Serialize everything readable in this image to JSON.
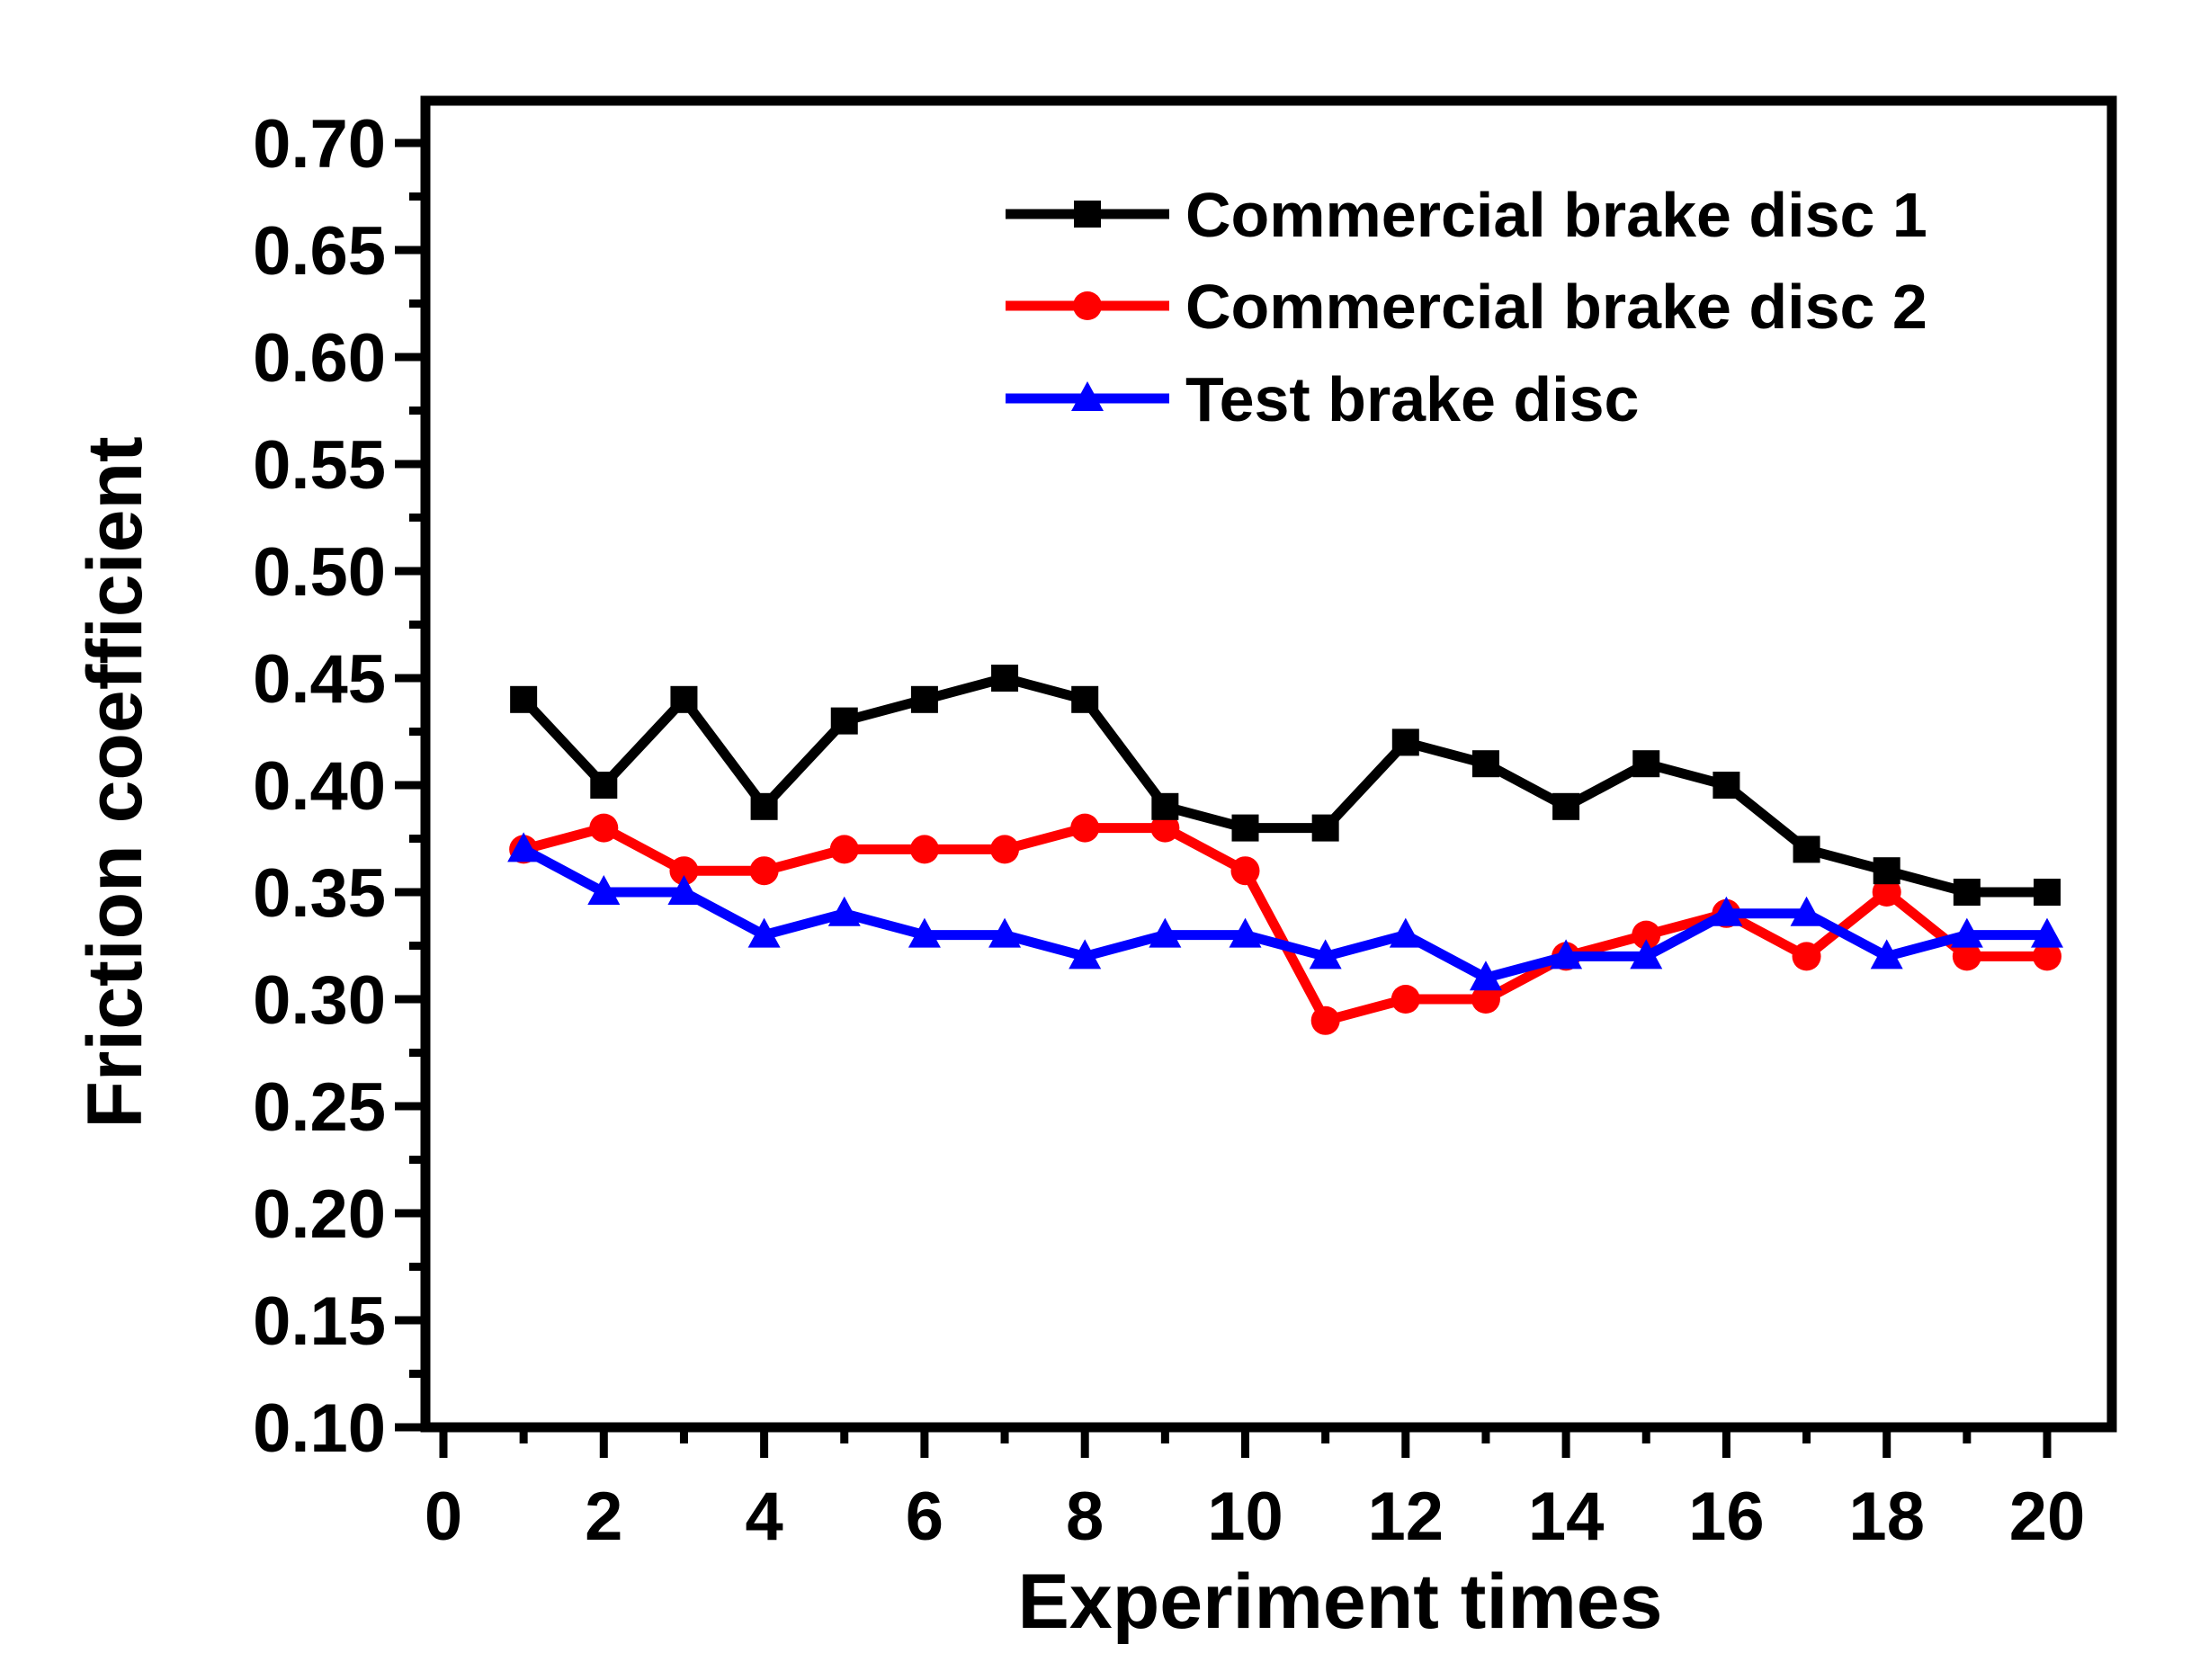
{
  "chart_data": {
    "type": "line",
    "title": "",
    "xlabel": "Experiment times",
    "ylabel": "Friction coefficient",
    "xlim": [
      0,
      21
    ],
    "ylim": [
      0.1,
      0.72
    ],
    "xticks": [
      0,
      2,
      4,
      6,
      8,
      10,
      12,
      14,
      16,
      18,
      20
    ],
    "xtick_labels": [
      "0",
      "2",
      "4",
      "6",
      "8",
      "10",
      "12",
      "14",
      "16",
      "18",
      "20"
    ],
    "yticks": [
      0.1,
      0.15,
      0.2,
      0.25,
      0.3,
      0.35,
      0.4,
      0.45,
      0.5,
      0.55,
      0.6,
      0.65,
      0.7
    ],
    "ytick_labels": [
      "0.10",
      "0.15",
      "0.20",
      "0.25",
      "0.30",
      "0.35",
      "0.40",
      "0.45",
      "0.50",
      "0.55",
      "0.60",
      "0.65",
      "0.70"
    ],
    "grid": false,
    "legend_position": "top-right",
    "x": [
      1,
      2,
      3,
      4,
      5,
      6,
      7,
      8,
      9,
      10,
      11,
      12,
      13,
      14,
      15,
      16,
      17,
      18,
      19,
      20
    ],
    "series": [
      {
        "name": "Commercial brake disc 1",
        "color": "#000000",
        "marker": "square",
        "values": [
          0.44,
          0.4,
          0.44,
          0.39,
          0.43,
          0.44,
          0.45,
          0.44,
          0.39,
          0.38,
          0.38,
          0.42,
          0.41,
          0.39,
          0.41,
          0.4,
          0.37,
          0.36,
          0.35,
          0.35
        ]
      },
      {
        "name": "Commercial brake disc 2",
        "color": "#ff0000",
        "marker": "circle",
        "values": [
          0.37,
          0.38,
          0.36,
          0.36,
          0.37,
          0.37,
          0.37,
          0.38,
          0.38,
          0.36,
          0.29,
          0.3,
          0.3,
          0.32,
          0.33,
          0.34,
          0.32,
          0.35,
          0.32,
          0.32
        ]
      },
      {
        "name": "Test brake disc",
        "color": "#0000ff",
        "marker": "triangle",
        "values": [
          0.37,
          0.35,
          0.35,
          0.33,
          0.34,
          0.33,
          0.33,
          0.32,
          0.33,
          0.33,
          0.32,
          0.33,
          0.31,
          0.32,
          0.32,
          0.34,
          0.34,
          0.32,
          0.33,
          0.33
        ]
      }
    ]
  }
}
